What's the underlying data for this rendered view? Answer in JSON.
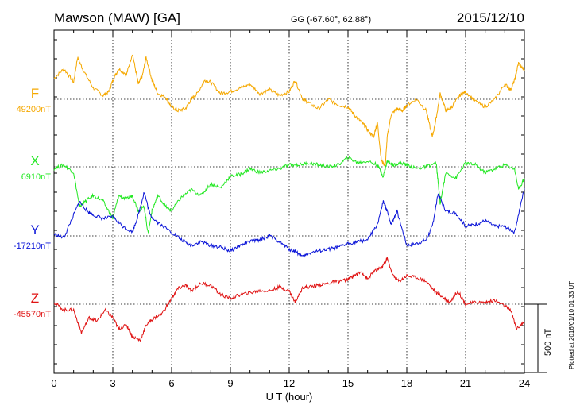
{
  "header": {
    "station": "Mawson (MAW)  [GA]",
    "coords": "GG (-67.60°,  62.88°)",
    "date": "2015/12/10"
  },
  "plotted_stamp": "Plotted at 2016/01/10 01:33 UT",
  "chart_data": {
    "type": "line",
    "title": "Mawson (MAW)  [GA]",
    "xlabel": "U T (hour)",
    "ylabel": "",
    "xlim": [
      0,
      24
    ],
    "x_ticks": [
      "0",
      "3",
      "6",
      "9",
      "12",
      "15",
      "18",
      "21",
      "24"
    ],
    "grid": true,
    "scale_bar_label": "500 nT",
    "scale_bar_nT": 500,
    "panel_span_nT": 1100,
    "series": [
      {
        "name": "F",
        "baseline_label": "49200nT",
        "baseline_nT": 49200,
        "color": "#f5a800",
        "x": [
          0,
          0.5,
          1,
          1.2,
          1.5,
          2,
          2.5,
          2.8,
          3,
          3.3,
          3.7,
          4,
          4.3,
          4.5,
          4.7,
          5,
          5.3,
          5.7,
          6,
          6.3,
          6.7,
          7,
          7.3,
          7.7,
          8,
          8.5,
          9,
          9.5,
          10,
          10.5,
          11,
          11.5,
          12,
          12.3,
          12.7,
          13,
          13.5,
          14,
          14.5,
          15,
          15.3,
          15.7,
          16,
          16.3,
          16.5,
          16.7,
          16.9,
          17,
          17.2,
          17.5,
          17.8,
          18,
          18.5,
          19,
          19.3,
          19.5,
          19.7,
          20,
          20.3,
          20.7,
          21,
          21.5,
          22,
          22.5,
          23,
          23.3,
          23.5,
          23.7,
          24
        ],
        "y": [
          49310,
          49360,
          49290,
          49420,
          49350,
          49260,
          49220,
          49240,
          49300,
          49360,
          49330,
          49440,
          49280,
          49320,
          49420,
          49300,
          49230,
          49210,
          49160,
          49140,
          49150,
          49200,
          49230,
          49300,
          49290,
          49230,
          49240,
          49260,
          49280,
          49230,
          49250,
          49220,
          49240,
          49300,
          49200,
          49180,
          49150,
          49200,
          49170,
          49160,
          49120,
          49080,
          49040,
          49000,
          49080,
          48880,
          48850,
          49000,
          49120,
          49150,
          49140,
          49170,
          49200,
          49140,
          49000,
          49100,
          49230,
          49140,
          49160,
          49220,
          49240,
          49190,
          49160,
          49200,
          49280,
          49250,
          49300,
          49390,
          49350
        ]
      },
      {
        "name": "X",
        "baseline_label": "6910nT",
        "baseline_nT": 6910,
        "color": "#22e822",
        "x": [
          0,
          0.5,
          1,
          1.3,
          1.5,
          2,
          2.5,
          3,
          3.3,
          3.7,
          4,
          4.3,
          4.6,
          4.8,
          5,
          5.3,
          5.7,
          6,
          6.5,
          7,
          7.5,
          8,
          8.5,
          9,
          9.5,
          10,
          10.5,
          11,
          11.5,
          12,
          12.5,
          13,
          13.5,
          14,
          14.5,
          15,
          15.5,
          16,
          16.5,
          16.8,
          17,
          17.3,
          17.7,
          18,
          18.5,
          19,
          19.5,
          19.7,
          20,
          20.5,
          21,
          21.5,
          22,
          22.5,
          23,
          23.5,
          23.7,
          24
        ],
        "y": [
          6900,
          6920,
          6880,
          6700,
          6720,
          6760,
          6730,
          6640,
          6760,
          6740,
          6760,
          6680,
          6700,
          6560,
          6680,
          6760,
          6700,
          6680,
          6750,
          6790,
          6760,
          6820,
          6800,
          6860,
          6870,
          6900,
          6880,
          6890,
          6900,
          6920,
          6920,
          6930,
          6920,
          6910,
          6920,
          6960,
          6930,
          6940,
          6920,
          6860,
          6940,
          6920,
          6930,
          6920,
          6900,
          6910,
          6930,
          6720,
          6880,
          6850,
          6930,
          6920,
          6880,
          6900,
          6920,
          6900,
          6790,
          6850
        ]
      },
      {
        "name": "Y",
        "baseline_label": "-17210nT",
        "baseline_nT": -17210,
        "color": "#0a14d8",
        "x": [
          0,
          0.5,
          1,
          1.3,
          1.7,
          2,
          2.5,
          3,
          3.5,
          4,
          4.3,
          4.6,
          4.9,
          5.3,
          6,
          6.5,
          7,
          7.5,
          8,
          8.5,
          9,
          9.5,
          10,
          10.5,
          11,
          11.5,
          12,
          12.3,
          12.7,
          13,
          13.5,
          14,
          14.5,
          15,
          15.5,
          16,
          16.5,
          16.8,
          17,
          17.2,
          17.5,
          18,
          18.5,
          19,
          19.3,
          19.6,
          20,
          20.5,
          21,
          21.5,
          22,
          22.5,
          23,
          23.5,
          24
        ],
        "y": [
          -17200,
          -17220,
          -17100,
          -17030,
          -17080,
          -17100,
          -17120,
          -17110,
          -17160,
          -17190,
          -17100,
          -16980,
          -17100,
          -17140,
          -17190,
          -17230,
          -17260,
          -17240,
          -17260,
          -17270,
          -17290,
          -17260,
          -17240,
          -17230,
          -17210,
          -17240,
          -17280,
          -17290,
          -17320,
          -17300,
          -17290,
          -17280,
          -17270,
          -17250,
          -17240,
          -17230,
          -17150,
          -17030,
          -17080,
          -17150,
          -17080,
          -17260,
          -17250,
          -17230,
          -17160,
          -16990,
          -17080,
          -17090,
          -17160,
          -17150,
          -17130,
          -17160,
          -17160,
          -17190,
          -16960
        ]
      },
      {
        "name": "Z",
        "baseline_label": "-45570nT",
        "baseline_nT": -45570,
        "color": "#e01414",
        "x": [
          0,
          0.5,
          1,
          1.4,
          1.8,
          2.2,
          2.6,
          3,
          3.3,
          3.7,
          4,
          4.4,
          4.7,
          5,
          5.5,
          6,
          6.3,
          6.7,
          7,
          7.5,
          8,
          8.5,
          9,
          9.5,
          10,
          10.5,
          11,
          11.5,
          12,
          12.3,
          12.7,
          13,
          13.5,
          14,
          14.5,
          15,
          15.3,
          15.7,
          16,
          16.3,
          16.7,
          17,
          17.3,
          17.6,
          18,
          18.5,
          19,
          19.5,
          19.8,
          20.2,
          20.6,
          21,
          21.5,
          22,
          22.5,
          23,
          23.3,
          23.6,
          24
        ],
        "y": [
          -45560,
          -45600,
          -45600,
          -45720,
          -45640,
          -45660,
          -45600,
          -45640,
          -45700,
          -45680,
          -45740,
          -45760,
          -45680,
          -45650,
          -45620,
          -45540,
          -45490,
          -45470,
          -45500,
          -45460,
          -45470,
          -45520,
          -45540,
          -45520,
          -45510,
          -45500,
          -45500,
          -45480,
          -45500,
          -45560,
          -45480,
          -45480,
          -45470,
          -45460,
          -45450,
          -45440,
          -45420,
          -45400,
          -45440,
          -45400,
          -45380,
          -45330,
          -45420,
          -45450,
          -45420,
          -45430,
          -45450,
          -45510,
          -45530,
          -45560,
          -45500,
          -45570,
          -45560,
          -45560,
          -45550,
          -45580,
          -45600,
          -45700,
          -45660
        ]
      }
    ]
  }
}
